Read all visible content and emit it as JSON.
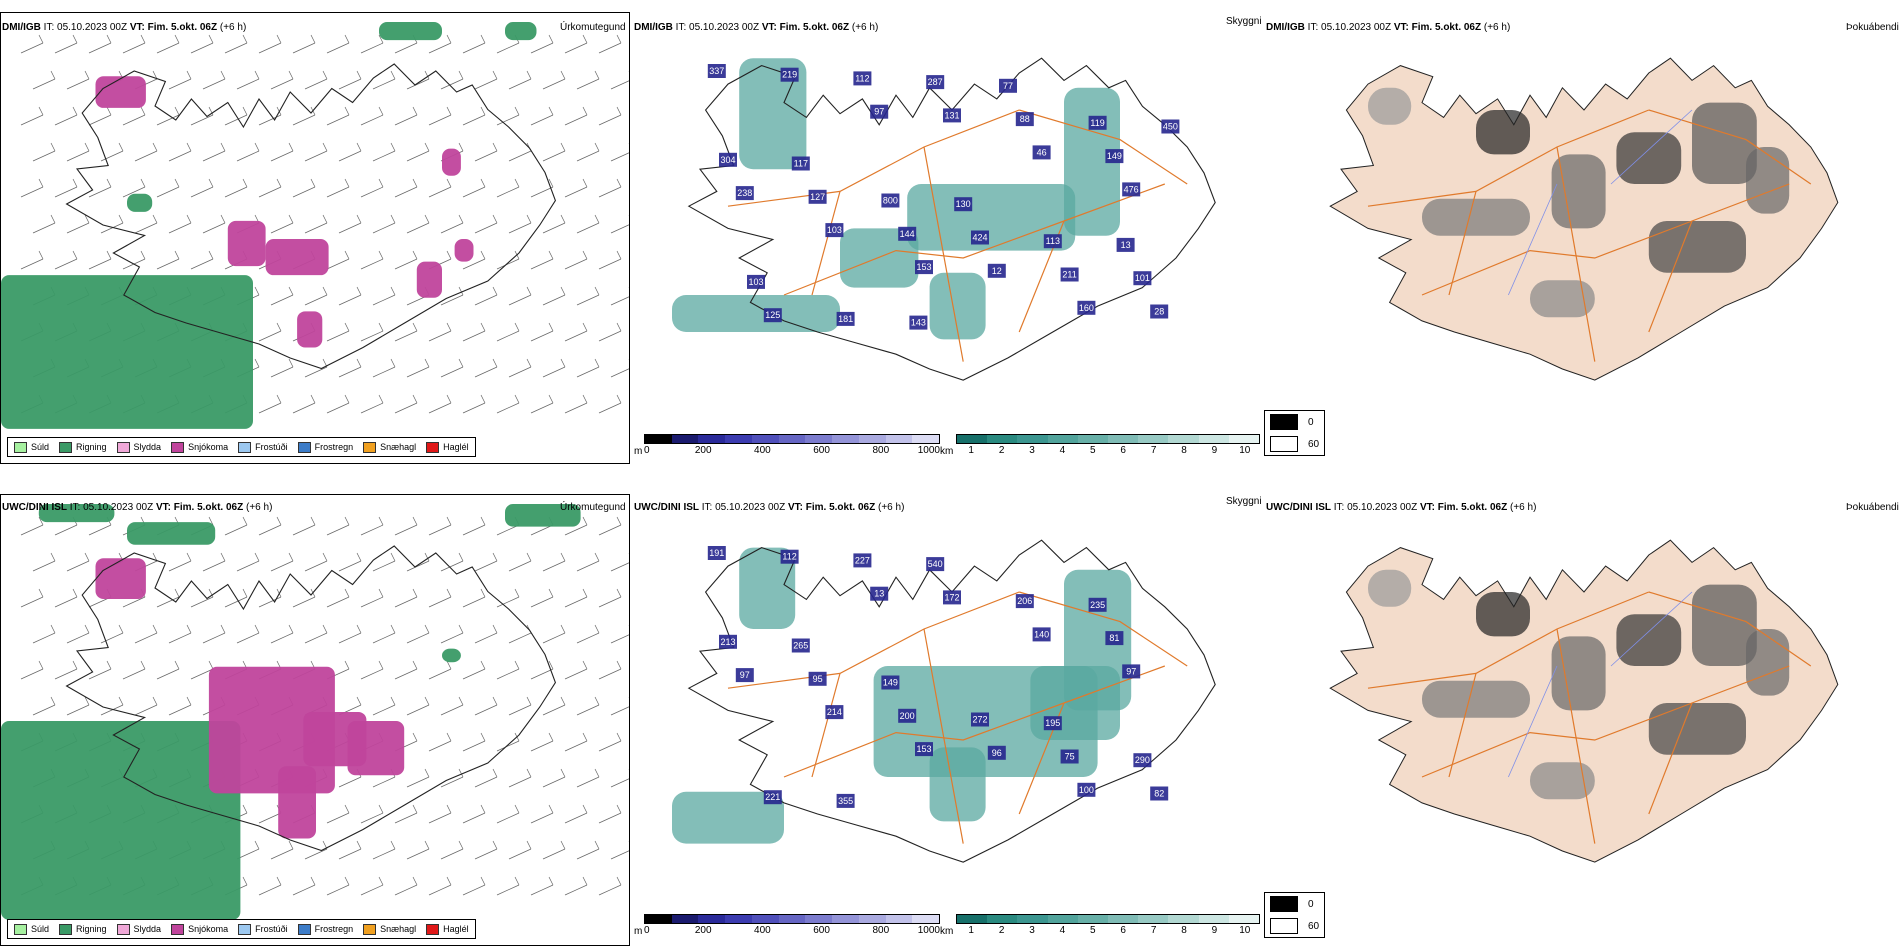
{
  "rows": [
    {
      "model": "DMI/IGB",
      "it_label": "IT:",
      "it_value": "05.10.2023 00Z",
      "vt_label": "VT:",
      "vt_value": "Fim. 5.okt. 06Z",
      "lead": "(+6 h)",
      "ptype_title": "Úrkomutegund",
      "vis_title": "Skyggni",
      "fog_title": "Þokuábendi",
      "vis_labels": [
        "337",
        "153",
        "476",
        "97",
        "160",
        "103",
        "46",
        "219",
        "12",
        "238",
        "131",
        "28",
        "144",
        "149",
        "112",
        "211",
        "127",
        "88",
        "125",
        "424",
        "304",
        "287",
        "101",
        "800",
        "119",
        "181",
        "113",
        "117",
        "77",
        "103",
        "130",
        "450",
        "143",
        "13"
      ]
    },
    {
      "model": "UWC/DINI ISL",
      "it_label": "IT:",
      "it_value": "05.10.2023 00Z",
      "vt_label": "VT:",
      "vt_value": "Fim. 5.okt. 06Z",
      "lead": "(+6 h)",
      "ptype_title": "Úrkomutegund",
      "vis_title": "Skyggni",
      "fog_title": "Þokuábendi",
      "vis_labels": [
        "191",
        "153",
        "97",
        "13",
        "100",
        "214",
        "140",
        "112",
        "96",
        "97",
        "172",
        "82",
        "200",
        "81",
        "227",
        "75",
        "95",
        "206",
        "221",
        "272",
        "213",
        "540",
        "290",
        "149",
        "235",
        "355",
        "195",
        "265"
      ]
    }
  ],
  "ptype_legend": [
    {
      "label": "Súld",
      "color": "#a6f0a0"
    },
    {
      "label": "Rigning",
      "color": "#3a9a66"
    },
    {
      "label": "Slydda",
      "color": "#f0a8d8"
    },
    {
      "label": "Snjókoma",
      "color": "#c0449c"
    },
    {
      "label": "Frostúði",
      "color": "#9cc8f0"
    },
    {
      "label": "Frostregn",
      "color": "#3c7cc8"
    },
    {
      "label": "Snæhagl",
      "color": "#f0a020"
    },
    {
      "label": "Haglél",
      "color": "#e01818"
    }
  ],
  "cloud_base_scale": {
    "unit": "m",
    "ticks": [
      "0",
      "200",
      "400",
      "600",
      "800",
      "1000"
    ],
    "colors": [
      "#000000",
      "#1a1a6e",
      "#2a2a9a",
      "#3c3cb0",
      "#5050bb",
      "#6666c4",
      "#7c7cce",
      "#9494d8",
      "#aaaae0",
      "#c2c2ea",
      "#dcdcf4"
    ]
  },
  "visibility_scale": {
    "unit": "km",
    "ticks": [
      "1",
      "2",
      "3",
      "4",
      "5",
      "6",
      "7",
      "8",
      "9",
      "10"
    ],
    "colors": [
      "#17706a",
      "#2a8a80",
      "#3c9690",
      "#52a49c",
      "#68b0a8",
      "#80bcb6",
      "#98cac4",
      "#b2d8d2",
      "#cce6e2",
      "#e6f3f1"
    ]
  },
  "fog_legend": [
    {
      "label": "0",
      "color": "#000000"
    },
    {
      "label": "60",
      "color": "#ffffff"
    }
  ],
  "colors": {
    "rain": "#3a9a66",
    "snow": "#c0449c",
    "land_tan": "#f3dccb",
    "roads": "#e07a2c",
    "rivers": "#7f8fe8"
  }
}
